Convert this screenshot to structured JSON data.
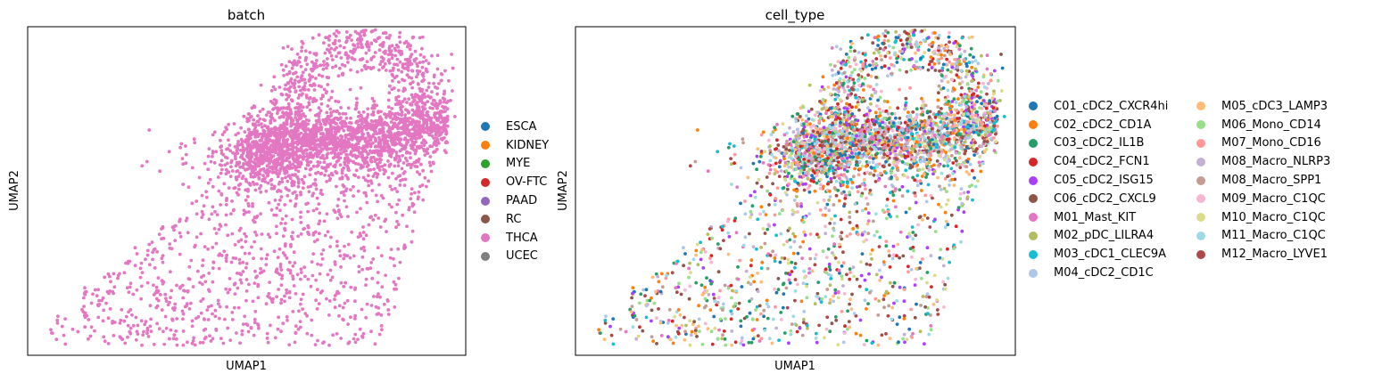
{
  "chart_data": [
    {
      "type": "scatter",
      "title": "batch",
      "xlabel": "UMAP1",
      "ylabel": "UMAP2",
      "grid": false,
      "ticks": "hidden",
      "legend_placement": "right",
      "xlim": [
        -1.0,
        1.0
      ],
      "ylim": [
        -1.0,
        1.0
      ],
      "legend": [
        {
          "label": "ESCA",
          "color": "#1f77b4"
        },
        {
          "label": "KIDNEY",
          "color": "#ff7f0e"
        },
        {
          "label": "MYE",
          "color": "#2ca02c"
        },
        {
          "label": "OV-FTC",
          "color": "#d62728"
        },
        {
          "label": "PAAD",
          "color": "#9467bd"
        },
        {
          "label": "RC",
          "color": "#8c564b"
        },
        {
          "label": "THCA",
          "color": "#e377c2"
        },
        {
          "label": "UCEC",
          "color": "#7f7f7f"
        }
      ],
      "dominant_series": "THCA"
    },
    {
      "type": "scatter",
      "title": "cell_type",
      "xlabel": "UMAP1",
      "ylabel": "UMAP2",
      "grid": false,
      "ticks": "hidden",
      "legend_placement": "right",
      "xlim": [
        -1.0,
        1.0
      ],
      "ylim": [
        -1.0,
        1.0
      ],
      "legend": [
        {
          "label": "C01_cDC2_CXCR4hi",
          "color": "#1f77b4"
        },
        {
          "label": "C02_cDC2_CD1A",
          "color": "#ff7f0e"
        },
        {
          "label": "C03_cDC2_IL1B",
          "color": "#279e68"
        },
        {
          "label": "C04_cDC2_FCN1",
          "color": "#d62728"
        },
        {
          "label": "C05_cDC2_ISG15",
          "color": "#aa40fc"
        },
        {
          "label": "C06_cDC2_CXCL9",
          "color": "#8c564b"
        },
        {
          "label": "M01_Mast_KIT",
          "color": "#e377c2"
        },
        {
          "label": "M02_pDC_LILRA4",
          "color": "#b5bd61"
        },
        {
          "label": "M03_cDC1_CLEC9A",
          "color": "#17becf"
        },
        {
          "label": "M04_cDC2_CD1C",
          "color": "#aec7e8"
        },
        {
          "label": "M05_cDC3_LAMP3",
          "color": "#ffbb78"
        },
        {
          "label": "M06_Mono_CD14",
          "color": "#98df8a"
        },
        {
          "label": "M07_Mono_CD16",
          "color": "#ff9896"
        },
        {
          "label": "M08_Macro_NLRP3",
          "color": "#c5b0d5"
        },
        {
          "label": "M08_Macro_SPP1",
          "color": "#c49c94"
        },
        {
          "label": "M09_Macro_C1QC",
          "color": "#f7b6d2"
        },
        {
          "label": "M10_Macro_C1QC",
          "color": "#dbdb8d"
        },
        {
          "label": "M11_Macro_C1QC",
          "color": "#9edae5"
        },
        {
          "label": "M12_Macro_LYVE1",
          "color": "#ad494a"
        }
      ]
    }
  ]
}
